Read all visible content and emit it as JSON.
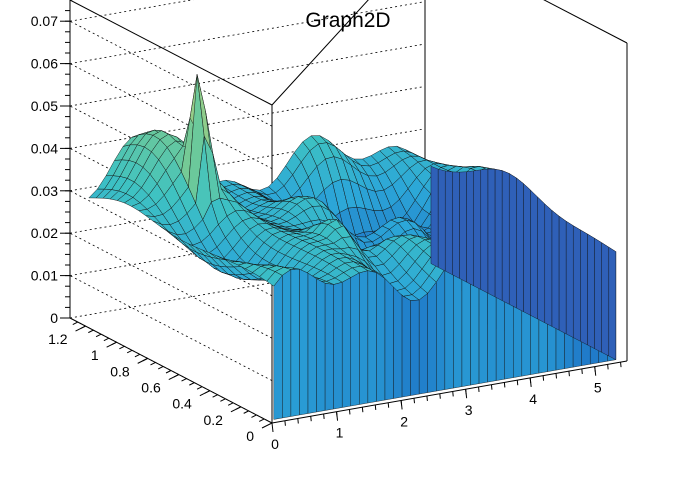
{
  "chart_data": {
    "type": "surface",
    "title": "Graph2D",
    "xlabel": "",
    "ylabel": "",
    "zlabel": "",
    "xlim": [
      0,
      5.5
    ],
    "ylim": [
      0,
      1.3
    ],
    "zlim": [
      0,
      0.075
    ],
    "x_ticks": [
      "0",
      "1",
      "2",
      "3",
      "4",
      "5"
    ],
    "y_ticks": [
      "0",
      "0.2",
      "0.4",
      "0.6",
      "0.8",
      "1",
      "1.2"
    ],
    "z_ticks": [
      "0",
      "0.01",
      "0.02",
      "0.03",
      "0.04",
      "0.05",
      "0.06",
      "0.07"
    ],
    "grid": true,
    "colormap": [
      "#26409c",
      "#1f78c8",
      "#2ca7d8",
      "#3ec2c2",
      "#6cc99a",
      "#a8cf80",
      "#e6c765"
    ],
    "surface_features": {
      "peak": {
        "x": 0.95,
        "y": 0.85,
        "z": 0.07
      },
      "front_ridge": {
        "x": 1.95,
        "y": 0.4,
        "z": 0.03
      },
      "low_trough": {
        "x": 4.6,
        "y": 0.45,
        "z": 0.0
      },
      "base_level": 0.029
    }
  }
}
